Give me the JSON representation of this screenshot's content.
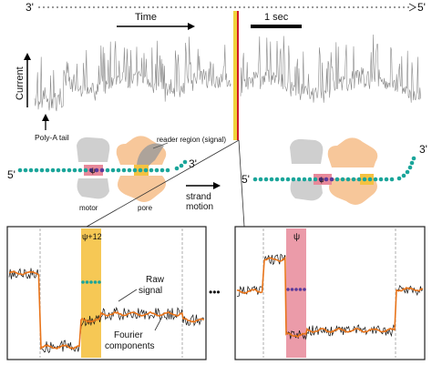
{
  "strand": {
    "five_prime": "5'",
    "three_prime": "3'"
  },
  "labels": {
    "time": "Time",
    "scale_bar": "1 sec",
    "current": "Current",
    "poly_a_tail": "Poly-A tail",
    "reader_region": "reader region (signal)",
    "strand_motion_1": "strand",
    "strand_motion_2": "motion",
    "motor": "motor",
    "pore": "pore",
    "psi": "ψ",
    "psi_plus_12": "ψ+12",
    "raw_signal_1": "Raw",
    "raw_signal_2": "signal",
    "fourier_1": "Fourier",
    "fourier_2": "components",
    "ellipsis": "•••"
  },
  "colors": {
    "trace": "#8a8a8a",
    "bead": "#1aa59a",
    "modified_bead": "#5a3a9a",
    "motor": "#cfcfcf",
    "pore": "#f7c79a",
    "pink_band": "#e8899a",
    "yellow_band": "#f5c242",
    "red_line": "#d0182a",
    "fourier": "#e8741a"
  }
}
